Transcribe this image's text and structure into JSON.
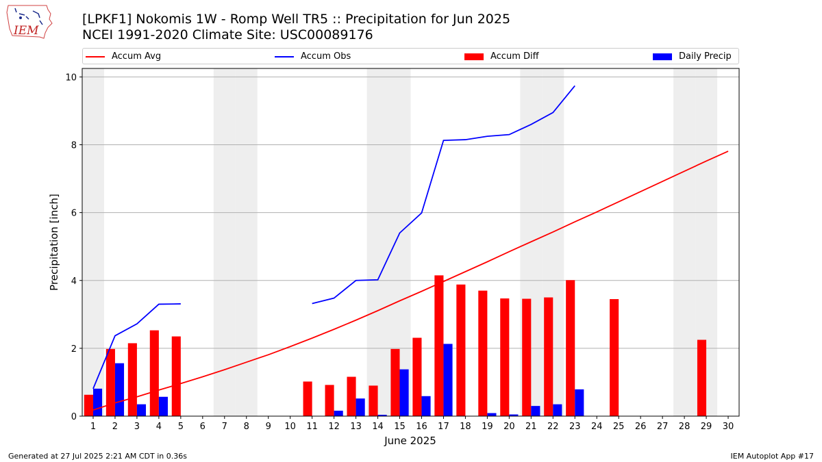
{
  "header": {
    "title_line1": "[LPKF1] Nokomis 1W - Romp Well TR5 :: Precipitation for Jun 2025",
    "title_line2": "NCEI 1991-2020 Climate Site: USC00089176"
  },
  "logo": {
    "text": "IEM"
  },
  "legend": {
    "items": [
      {
        "label": "Accum Avg",
        "kind": "line",
        "color": "#ff0000"
      },
      {
        "label": "Accum Obs",
        "kind": "line",
        "color": "#0000ff"
      },
      {
        "label": "Accum Diff",
        "kind": "bar",
        "color": "#ff0000"
      },
      {
        "label": "Daily Precip",
        "kind": "bar",
        "color": "#0000ff"
      }
    ]
  },
  "footer": {
    "left": "Generated at 27 Jul 2025 2:21 AM CDT in 0.36s",
    "right": "IEM Autoplot App #17"
  },
  "chart_data": {
    "type": "bar",
    "xlabel": "June 2025",
    "ylabel": "Precipitation [inch]",
    "ylim": [
      0,
      10.25
    ],
    "xlim": [
      0.5,
      30.5
    ],
    "yticks": [
      0,
      2,
      4,
      6,
      8,
      10
    ],
    "categories": [
      1,
      2,
      3,
      4,
      5,
      6,
      7,
      8,
      9,
      10,
      11,
      12,
      13,
      14,
      15,
      16,
      17,
      18,
      19,
      20,
      21,
      22,
      23,
      24,
      25,
      26,
      27,
      28,
      29,
      30
    ],
    "weekend_days": [
      1,
      7,
      8,
      14,
      15,
      21,
      22,
      28,
      29
    ],
    "grid": "horizontal",
    "series": [
      {
        "name": "Accum Diff",
        "kind": "bar",
        "color": "#ff0000",
        "values": [
          0.63,
          1.98,
          2.15,
          2.53,
          2.35,
          null,
          null,
          null,
          null,
          null,
          1.02,
          0.92,
          1.16,
          0.9,
          1.98,
          2.31,
          4.15,
          3.88,
          3.7,
          3.47,
          3.46,
          3.5,
          4.01,
          null,
          3.45,
          null,
          null,
          null,
          2.25,
          null
        ]
      },
      {
        "name": "Daily Precip",
        "kind": "bar",
        "color": "#0000ff",
        "values": [
          0.81,
          1.56,
          0.35,
          0.57,
          0.01,
          0,
          0,
          0,
          0,
          0,
          0.01,
          0.16,
          0.52,
          0.04,
          1.38,
          0.59,
          2.13,
          0.01,
          0.09,
          0.05,
          0.3,
          0.35,
          0.79,
          0,
          0.01,
          0,
          0,
          0,
          0.01,
          0
        ]
      },
      {
        "name": "Accum Obs",
        "kind": "line",
        "color": "#0000ff",
        "values": [
          0.81,
          2.37,
          2.72,
          3.3,
          3.31,
          null,
          null,
          null,
          null,
          null,
          3.32,
          3.48,
          4.0,
          4.02,
          5.4,
          5.99,
          8.13,
          8.15,
          8.25,
          8.3,
          8.6,
          8.95,
          9.74,
          null,
          null,
          null,
          null,
          null,
          null,
          null
        ]
      },
      {
        "name": "Accum Avg",
        "kind": "line",
        "color": "#ff0000",
        "values": [
          0.18,
          0.39,
          0.57,
          0.77,
          0.96,
          1.16,
          1.37,
          1.59,
          1.81,
          2.05,
          2.3,
          2.56,
          2.83,
          3.11,
          3.4,
          3.68,
          3.97,
          4.26,
          4.55,
          4.85,
          5.14,
          5.43,
          5.73,
          6.02,
          6.32,
          6.62,
          6.92,
          7.22,
          7.52,
          7.81
        ]
      }
    ]
  }
}
